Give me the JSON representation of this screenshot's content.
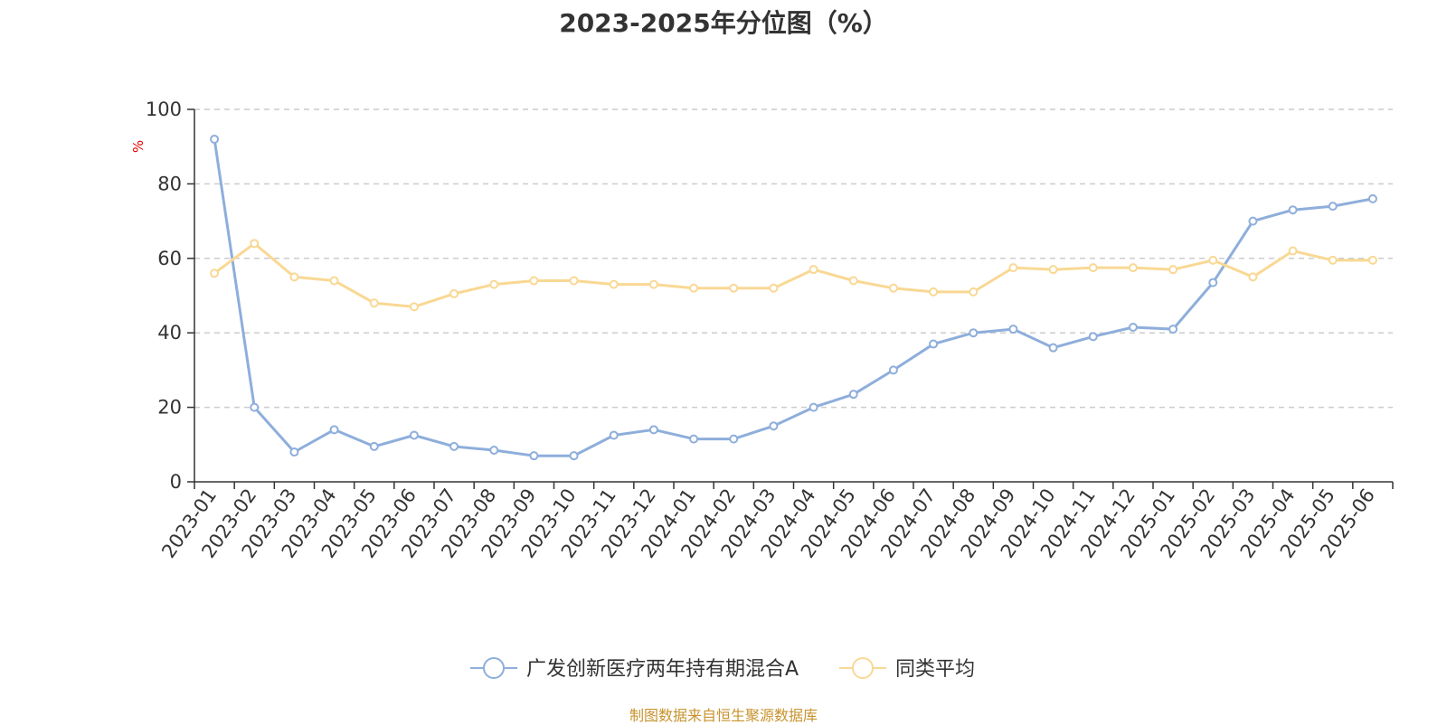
{
  "chart_data": {
    "type": "line",
    "title": "2023-2025年分位图（%）",
    "ylabel": "%",
    "xlabel": "",
    "ylim": [
      0,
      100
    ],
    "yticks": [
      0,
      20,
      40,
      60,
      80,
      100
    ],
    "grid": true,
    "legend_position": "bottom-center",
    "categories": [
      "2023-01",
      "2023-02",
      "2023-03",
      "2023-04",
      "2023-05",
      "2023-06",
      "2023-07",
      "2023-08",
      "2023-09",
      "2023-10",
      "2023-11",
      "2023-12",
      "2024-01",
      "2024-02",
      "2024-03",
      "2024-04",
      "2024-05",
      "2024-06",
      "2024-07",
      "2024-08",
      "2024-09",
      "2024-10",
      "2024-11",
      "2024-12",
      "2025-01",
      "2025-02",
      "2025-03",
      "2025-04",
      "2025-05",
      "2025-06"
    ],
    "series": [
      {
        "name": "广发创新医疗两年持有期混合A",
        "color": "#8eaedb",
        "values": [
          92,
          20,
          8,
          14,
          9.5,
          12.5,
          9.5,
          8.5,
          7,
          7,
          12.5,
          14,
          11.5,
          11.5,
          15,
          20,
          23.5,
          30,
          37,
          40,
          41,
          36,
          39,
          41.5,
          41,
          53.5,
          70,
          73,
          74,
          76
        ]
      },
      {
        "name": "同类平均",
        "color": "#f9d894",
        "values": [
          56,
          64,
          55,
          54,
          48,
          47,
          50.5,
          53,
          54,
          54,
          53,
          53,
          52,
          52,
          52,
          57,
          54,
          52,
          51,
          51,
          57.5,
          57,
          57.5,
          57.5,
          57,
          59.5,
          55,
          62,
          59.5,
          59.5
        ]
      }
    ]
  },
  "source_note": "制图数据来自恒生聚源数据库"
}
